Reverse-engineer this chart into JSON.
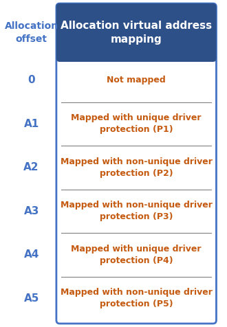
{
  "title": "Allocation virtual address\nmapping",
  "title_bg_color_top": "#2a4a6e",
  "title_bg_color": "#4472c4",
  "title_text_color": "#ffffff",
  "left_label": "Allocation\noffset",
  "left_label_color": "#4472c4",
  "offsets": [
    "0",
    "A1",
    "A2",
    "A3",
    "A4",
    "A5"
  ],
  "offset_color": "#4472c4",
  "rows": [
    {
      "text": "Not mapped",
      "color": "#c55a11"
    },
    {
      "text": "Mapped with unique driver\nprotection (P1)",
      "color": "#c55a11"
    },
    {
      "text": "Mapped with non-unique driver\nprotection (P2)",
      "color": "#c55a11"
    },
    {
      "text": "Mapped with non-unique driver\nprotection (P3)",
      "color": "#c55a11"
    },
    {
      "text": "Mapped with unique driver\nprotection (P4)",
      "color": "#c55a11"
    },
    {
      "text": "Mapped with non-unique driver\nprotection (P5)",
      "color": "#c55a11"
    }
  ],
  "outer_border_color": "#4472c4",
  "cell_border_color": "#808080",
  "cell_bg_color": "#ffffff",
  "figsize": [
    3.3,
    4.76
  ],
  "dpi": 100
}
